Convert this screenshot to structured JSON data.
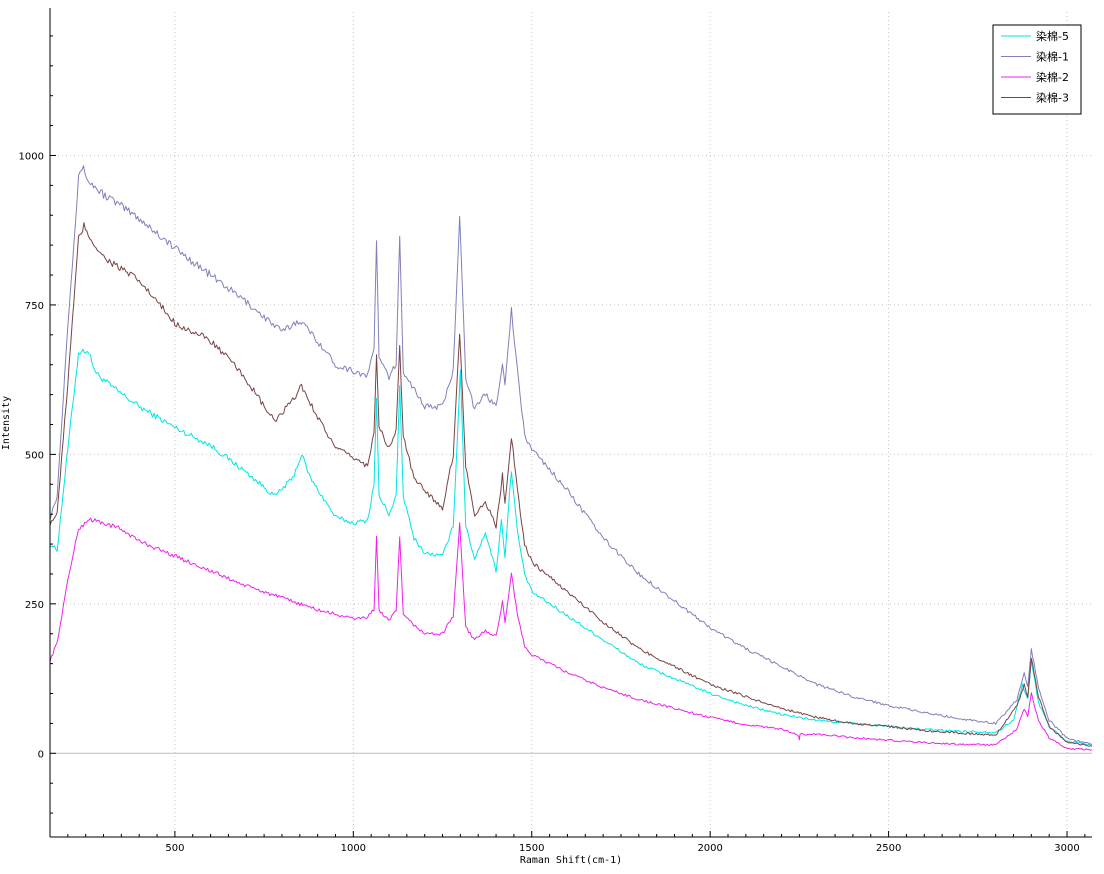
{
  "chart_data": {
    "type": "line",
    "title": "",
    "xlabel": "Raman Shift(cm-1)",
    "ylabel": "Intensity",
    "xlim": [
      150,
      3070
    ],
    "ylim": [
      -140,
      1240
    ],
    "x_ticks": [
      500,
      1000,
      1500,
      2000,
      2500,
      3000
    ],
    "y_ticks": [
      0,
      250,
      500,
      750,
      1000
    ],
    "grid": true,
    "legend_position": "top-right",
    "series": [
      {
        "name": "染棉-5",
        "color": "#00e5e5",
        "points": [
          [
            150,
            350
          ],
          [
            170,
            340
          ],
          [
            200,
            510
          ],
          [
            230,
            670
          ],
          [
            255,
            675
          ],
          [
            280,
            635
          ],
          [
            330,
            610
          ],
          [
            400,
            580
          ],
          [
            500,
            545
          ],
          [
            600,
            515
          ],
          [
            700,
            470
          ],
          [
            780,
            430
          ],
          [
            830,
            460
          ],
          [
            855,
            500
          ],
          [
            880,
            460
          ],
          [
            950,
            395
          ],
          [
            1000,
            385
          ],
          [
            1040,
            390
          ],
          [
            1058,
            450
          ],
          [
            1065,
            595
          ],
          [
            1072,
            430
          ],
          [
            1100,
            400
          ],
          [
            1120,
            430
          ],
          [
            1130,
            610
          ],
          [
            1140,
            430
          ],
          [
            1170,
            360
          ],
          [
            1200,
            335
          ],
          [
            1250,
            330
          ],
          [
            1280,
            380
          ],
          [
            1300,
            640
          ],
          [
            1315,
            380
          ],
          [
            1340,
            325
          ],
          [
            1370,
            370
          ],
          [
            1400,
            305
          ],
          [
            1415,
            390
          ],
          [
            1425,
            330
          ],
          [
            1443,
            475
          ],
          [
            1460,
            370
          ],
          [
            1480,
            300
          ],
          [
            1500,
            270
          ],
          [
            1600,
            230
          ],
          [
            1700,
            190
          ],
          [
            1800,
            150
          ],
          [
            1900,
            125
          ],
          [
            2000,
            100
          ],
          [
            2100,
            80
          ],
          [
            2200,
            65
          ],
          [
            2300,
            55
          ],
          [
            2400,
            50
          ],
          [
            2500,
            45
          ],
          [
            2600,
            40
          ],
          [
            2700,
            37
          ],
          [
            2800,
            35
          ],
          [
            2850,
            55
          ],
          [
            2875,
            115
          ],
          [
            2890,
            90
          ],
          [
            2900,
            155
          ],
          [
            2920,
            85
          ],
          [
            2950,
            45
          ],
          [
            3000,
            20
          ],
          [
            3070,
            15
          ]
        ]
      },
      {
        "name": "染棉-1",
        "color": "#8080bb",
        "points": [
          [
            150,
            395
          ],
          [
            170,
            430
          ],
          [
            200,
            720
          ],
          [
            230,
            960
          ],
          [
            240,
            982
          ],
          [
            260,
            955
          ],
          [
            300,
            935
          ],
          [
            400,
            895
          ],
          [
            500,
            845
          ],
          [
            600,
            800
          ],
          [
            700,
            755
          ],
          [
            800,
            705
          ],
          [
            850,
            725
          ],
          [
            900,
            690
          ],
          [
            950,
            650
          ],
          [
            1000,
            640
          ],
          [
            1040,
            630
          ],
          [
            1058,
            680
          ],
          [
            1065,
            860
          ],
          [
            1072,
            660
          ],
          [
            1100,
            630
          ],
          [
            1120,
            650
          ],
          [
            1130,
            860
          ],
          [
            1140,
            640
          ],
          [
            1180,
            600
          ],
          [
            1200,
            580
          ],
          [
            1250,
            580
          ],
          [
            1280,
            640
          ],
          [
            1298,
            905
          ],
          [
            1315,
            630
          ],
          [
            1340,
            575
          ],
          [
            1370,
            600
          ],
          [
            1400,
            580
          ],
          [
            1418,
            655
          ],
          [
            1425,
            620
          ],
          [
            1443,
            740
          ],
          [
            1460,
            640
          ],
          [
            1480,
            530
          ],
          [
            1500,
            510
          ],
          [
            1600,
            440
          ],
          [
            1700,
            360
          ],
          [
            1800,
            300
          ],
          [
            1900,
            255
          ],
          [
            2000,
            210
          ],
          [
            2100,
            175
          ],
          [
            2200,
            145
          ],
          [
            2300,
            115
          ],
          [
            2400,
            95
          ],
          [
            2500,
            80
          ],
          [
            2600,
            68
          ],
          [
            2700,
            58
          ],
          [
            2800,
            50
          ],
          [
            2860,
            90
          ],
          [
            2880,
            135
          ],
          [
            2890,
            110
          ],
          [
            2900,
            175
          ],
          [
            2920,
            110
          ],
          [
            2950,
            55
          ],
          [
            3000,
            25
          ],
          [
            3070,
            15
          ]
        ]
      },
      {
        "name": "染棉-2",
        "color": "#ee22ee",
        "points": [
          [
            150,
            155
          ],
          [
            170,
            185
          ],
          [
            200,
            290
          ],
          [
            230,
            375
          ],
          [
            260,
            392
          ],
          [
            300,
            385
          ],
          [
            350,
            375
          ],
          [
            400,
            355
          ],
          [
            500,
            330
          ],
          [
            600,
            305
          ],
          [
            700,
            280
          ],
          [
            800,
            260
          ],
          [
            900,
            240
          ],
          [
            1000,
            225
          ],
          [
            1040,
            228
          ],
          [
            1058,
            240
          ],
          [
            1065,
            365
          ],
          [
            1072,
            240
          ],
          [
            1100,
            220
          ],
          [
            1120,
            240
          ],
          [
            1130,
            360
          ],
          [
            1140,
            230
          ],
          [
            1200,
            200
          ],
          [
            1250,
            200
          ],
          [
            1280,
            230
          ],
          [
            1298,
            385
          ],
          [
            1315,
            210
          ],
          [
            1340,
            190
          ],
          [
            1370,
            205
          ],
          [
            1400,
            195
          ],
          [
            1418,
            255
          ],
          [
            1425,
            220
          ],
          [
            1443,
            300
          ],
          [
            1460,
            230
          ],
          [
            1480,
            180
          ],
          [
            1500,
            165
          ],
          [
            1600,
            135
          ],
          [
            1700,
            110
          ],
          [
            1800,
            90
          ],
          [
            1900,
            75
          ],
          [
            2000,
            60
          ],
          [
            2100,
            48
          ],
          [
            2200,
            40
          ],
          [
            2248,
            30
          ],
          [
            2250,
            22
          ],
          [
            2252,
            32
          ],
          [
            2300,
            32
          ],
          [
            2400,
            26
          ],
          [
            2500,
            22
          ],
          [
            2600,
            18
          ],
          [
            2700,
            15
          ],
          [
            2800,
            14
          ],
          [
            2860,
            40
          ],
          [
            2880,
            75
          ],
          [
            2890,
            60
          ],
          [
            2900,
            100
          ],
          [
            2920,
            55
          ],
          [
            2950,
            25
          ],
          [
            3000,
            8
          ],
          [
            3070,
            6
          ]
        ]
      },
      {
        "name": "染棉-3",
        "color": "#774444",
        "points": [
          [
            150,
            385
          ],
          [
            170,
            400
          ],
          [
            200,
            620
          ],
          [
            230,
            860
          ],
          [
            245,
            882
          ],
          [
            270,
            855
          ],
          [
            300,
            830
          ],
          [
            400,
            790
          ],
          [
            500,
            720
          ],
          [
            600,
            690
          ],
          [
            650,
            660
          ],
          [
            700,
            625
          ],
          [
            750,
            580
          ],
          [
            780,
            555
          ],
          [
            830,
            590
          ],
          [
            855,
            615
          ],
          [
            880,
            585
          ],
          [
            950,
            510
          ],
          [
            1000,
            495
          ],
          [
            1040,
            480
          ],
          [
            1058,
            540
          ],
          [
            1065,
            670
          ],
          [
            1072,
            545
          ],
          [
            1100,
            510
          ],
          [
            1120,
            540
          ],
          [
            1130,
            680
          ],
          [
            1140,
            530
          ],
          [
            1170,
            460
          ],
          [
            1200,
            440
          ],
          [
            1250,
            410
          ],
          [
            1280,
            500
          ],
          [
            1298,
            705
          ],
          [
            1315,
            480
          ],
          [
            1340,
            400
          ],
          [
            1370,
            420
          ],
          [
            1400,
            380
          ],
          [
            1418,
            465
          ],
          [
            1425,
            420
          ],
          [
            1443,
            530
          ],
          [
            1460,
            440
          ],
          [
            1480,
            350
          ],
          [
            1500,
            320
          ],
          [
            1600,
            270
          ],
          [
            1700,
            220
          ],
          [
            1800,
            175
          ],
          [
            1900,
            145
          ],
          [
            2000,
            115
          ],
          [
            2100,
            95
          ],
          [
            2200,
            75
          ],
          [
            2300,
            60
          ],
          [
            2400,
            50
          ],
          [
            2500,
            45
          ],
          [
            2600,
            38
          ],
          [
            2700,
            34
          ],
          [
            2800,
            30
          ],
          [
            2860,
            80
          ],
          [
            2880,
            115
          ],
          [
            2890,
            95
          ],
          [
            2900,
            160
          ],
          [
            2920,
            95
          ],
          [
            2950,
            45
          ],
          [
            3000,
            18
          ],
          [
            3070,
            12
          ]
        ]
      }
    ]
  }
}
